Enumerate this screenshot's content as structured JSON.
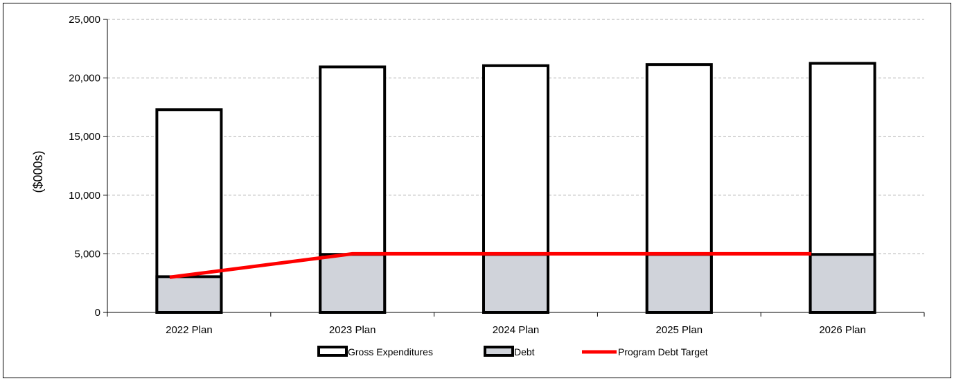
{
  "chart_data": {
    "type": "bar",
    "title": "",
    "xlabel": "",
    "ylabel": "($000s)",
    "ylim": [
      0,
      25000
    ],
    "yticks": [
      0,
      5000,
      10000,
      15000,
      20000,
      25000
    ],
    "ytick_labels": [
      "0",
      "5,000",
      "10,000",
      "15,000",
      "20,000",
      "25,000"
    ],
    "categories": [
      "2022 Plan",
      "2023 Plan",
      "2024 Plan",
      "2025 Plan",
      "2026 Plan"
    ],
    "series": [
      {
        "name": "Gross Expenditures",
        "kind": "bar",
        "values": [
          17300,
          20950,
          21050,
          21150,
          21250
        ],
        "fill": "#ffffff",
        "stroke": "#000000"
      },
      {
        "name": "Debt",
        "kind": "bar",
        "values": [
          3050,
          4950,
          4950,
          4950,
          4950
        ],
        "fill": "#d0d3da",
        "stroke": "#000000"
      },
      {
        "name": "Program Debt Target",
        "kind": "line",
        "values": [
          3000,
          5000,
          5000,
          5000,
          5000
        ],
        "color": "#ff0000"
      }
    ],
    "grid": true,
    "legend_position": "bottom"
  }
}
